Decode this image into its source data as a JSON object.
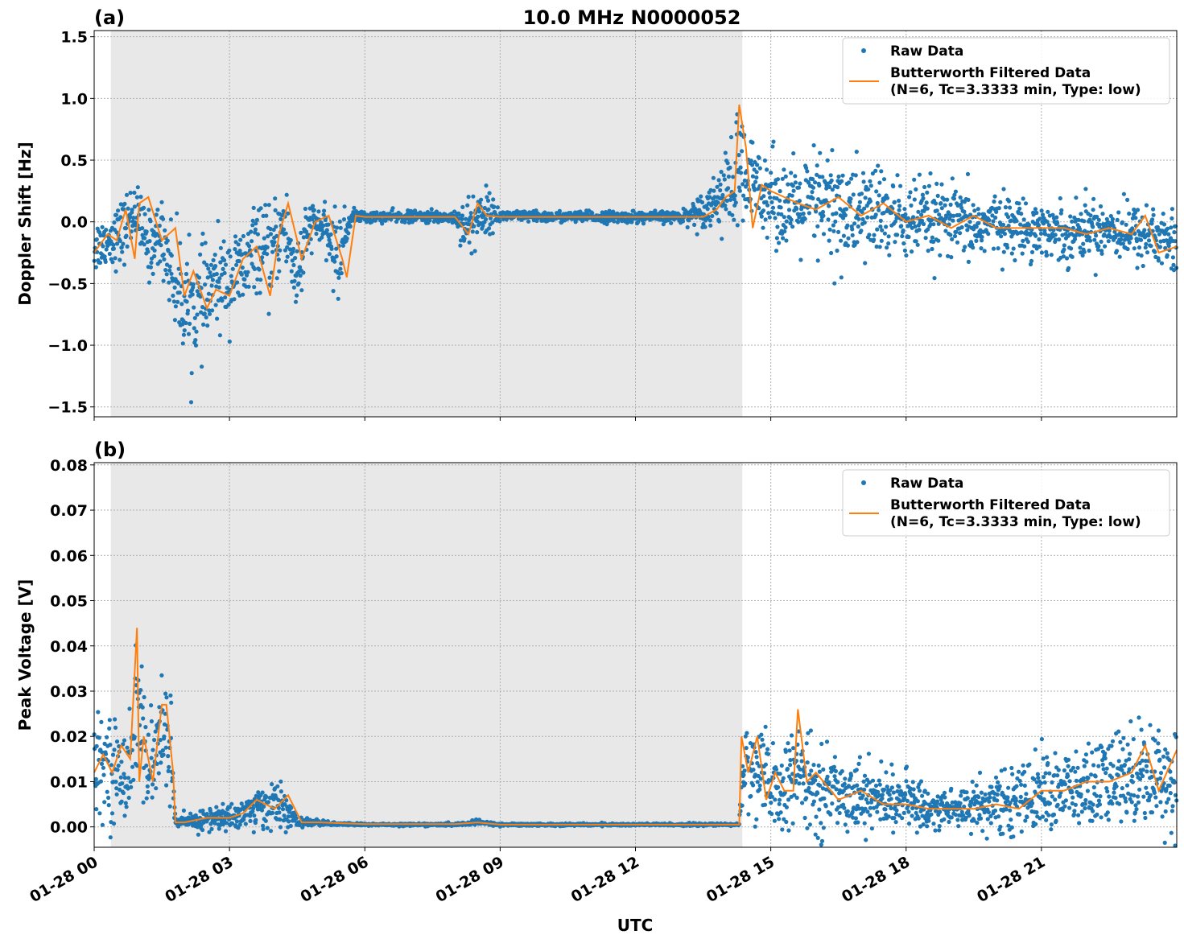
{
  "figure": {
    "title": "10.0 MHz N0000052",
    "x_axis_label": "UTC"
  },
  "chart_data": [
    {
      "panel": "(a)",
      "type": "line",
      "title": "10.0 MHz N0000052",
      "ylabel": "Doppler Shift [Hz]",
      "xlabel": "",
      "x_range_hours": [
        0,
        24
      ],
      "ylim": [
        -1.58,
        1.55
      ],
      "yticks": [
        -1.5,
        -1.0,
        -0.5,
        0.0,
        0.5,
        1.0,
        1.5
      ],
      "ytick_labels": [
        "−1.5",
        "−1.0",
        "−0.5",
        "0.0",
        "0.5",
        "1.0",
        "1.5"
      ],
      "grid": true,
      "legend_position": "top-right",
      "shaded_region_hours": [
        0.37,
        14.37
      ],
      "series": [
        {
          "name": "Raw Data",
          "style": "points",
          "color": "#1f77b4",
          "x_hours": [
            0,
            0.3,
            0.6,
            0.9,
            1.2,
            1.5,
            1.8,
            2.1,
            2.4,
            2.7,
            3.0,
            3.3,
            3.6,
            3.9,
            4.2,
            4.5,
            4.8,
            5.1,
            5.4,
            5.7,
            6.0,
            7.0,
            8.0,
            8.3,
            8.6,
            9.0,
            10.0,
            11.0,
            12.0,
            13.0,
            13.5,
            14.0,
            14.3,
            14.5,
            14.8,
            15.2,
            15.6,
            16.0,
            16.4,
            16.8,
            17.2,
            17.6,
            18.0,
            18.5,
            19.0,
            19.5,
            20.0,
            20.5,
            21.0,
            21.5,
            22.0,
            22.5,
            23.0,
            23.5,
            24.0
          ],
          "y_center": [
            -0.2,
            -0.15,
            -0.1,
            0.1,
            -0.2,
            -0.1,
            -0.5,
            -0.7,
            -0.65,
            -0.5,
            -0.45,
            -0.4,
            -0.2,
            -0.3,
            0.0,
            -0.45,
            0.0,
            -0.05,
            -0.3,
            0.05,
            0.04,
            0.04,
            0.04,
            -0.05,
            0.08,
            0.05,
            0.04,
            0.04,
            0.04,
            0.04,
            0.1,
            0.25,
            0.35,
            0.3,
            0.3,
            0.15,
            0.1,
            0.15,
            0.1,
            0.05,
            0.1,
            0.05,
            0.0,
            0.0,
            0.0,
            -0.05,
            0.0,
            -0.05,
            -0.05,
            -0.1,
            -0.05,
            -0.05,
            -0.1,
            -0.1,
            -0.2
          ],
          "y_spread": [
            0.25,
            0.2,
            0.3,
            0.25,
            0.3,
            0.3,
            0.45,
            0.5,
            0.45,
            0.4,
            0.4,
            0.4,
            0.35,
            0.4,
            0.35,
            0.45,
            0.2,
            0.15,
            0.4,
            0.06,
            0.05,
            0.05,
            0.06,
            0.3,
            0.25,
            0.05,
            0.05,
            0.05,
            0.05,
            0.05,
            0.15,
            0.3,
            0.7,
            0.4,
            0.35,
            0.4,
            0.35,
            0.5,
            0.55,
            0.45,
            0.45,
            0.4,
            0.35,
            0.35,
            0.3,
            0.3,
            0.25,
            0.25,
            0.25,
            0.25,
            0.25,
            0.25,
            0.25,
            0.3,
            0.3
          ]
        },
        {
          "name": "Butterworth Filtered Data\n(N=6, Tc=3.3333 min, Type: low)",
          "style": "line",
          "color": "#ff7f0e",
          "x_hours": [
            0,
            0.3,
            0.5,
            0.7,
            0.9,
            1.0,
            1.2,
            1.5,
            1.8,
            2.0,
            2.2,
            2.5,
            2.7,
            3.0,
            3.3,
            3.6,
            3.9,
            4.1,
            4.3,
            4.6,
            4.9,
            5.2,
            5.5,
            5.6,
            5.8,
            6.0,
            8.0,
            8.3,
            8.5,
            8.7,
            9.0,
            10.0,
            12.0,
            13.5,
            13.8,
            14.0,
            14.2,
            14.3,
            14.45,
            14.6,
            14.8,
            15.0,
            15.3,
            15.6,
            16.0,
            16.5,
            17.0,
            17.5,
            18.0,
            18.5,
            19.0,
            19.5,
            20.0,
            20.5,
            21.0,
            21.5,
            22.0,
            22.5,
            23.0,
            23.3,
            23.6,
            24.0
          ],
          "y_values": [
            -0.25,
            -0.1,
            -0.15,
            0.1,
            -0.3,
            0.15,
            0.2,
            -0.15,
            -0.05,
            -0.6,
            -0.4,
            -0.7,
            -0.55,
            -0.6,
            -0.3,
            -0.2,
            -0.6,
            -0.1,
            0.15,
            -0.3,
            0.0,
            0.05,
            -0.3,
            -0.45,
            0.05,
            0.04,
            0.04,
            -0.1,
            0.15,
            0.05,
            0.04,
            0.04,
            0.04,
            0.04,
            0.1,
            0.2,
            0.25,
            0.95,
            0.6,
            -0.05,
            0.3,
            0.25,
            0.2,
            0.15,
            0.1,
            0.2,
            0.05,
            0.15,
            0.0,
            0.05,
            -0.05,
            0.05,
            -0.05,
            -0.05,
            -0.05,
            -0.05,
            -0.1,
            -0.05,
            -0.1,
            0.05,
            -0.25,
            -0.2
          ]
        }
      ]
    },
    {
      "panel": "(b)",
      "type": "line",
      "ylabel": "Peak Voltage [V]",
      "xlabel": "UTC",
      "x_range_hours": [
        0,
        24
      ],
      "ylim": [
        -0.0045,
        0.0805
      ],
      "yticks": [
        0.0,
        0.01,
        0.02,
        0.03,
        0.04,
        0.05,
        0.06,
        0.07,
        0.08
      ],
      "ytick_labels": [
        "0.00",
        "0.01",
        "0.02",
        "0.03",
        "0.04",
        "0.05",
        "0.06",
        "0.07",
        "0.08"
      ],
      "grid": true,
      "legend_position": "top-right",
      "shaded_region_hours": [
        0.37,
        14.37
      ],
      "series": [
        {
          "name": "Raw Data",
          "style": "points",
          "color": "#1f77b4",
          "x_hours": [
            0,
            0.3,
            0.6,
            0.9,
            1.0,
            1.2,
            1.5,
            1.7,
            1.8,
            2.1,
            2.4,
            2.7,
            3.0,
            3.3,
            3.6,
            3.9,
            4.2,
            4.5,
            4.8,
            5.1,
            5.4,
            5.7,
            6.0,
            8.0,
            8.5,
            9.0,
            12.0,
            14.0,
            14.3,
            14.4,
            14.7,
            15.0,
            15.3,
            15.6,
            16.0,
            16.5,
            17.0,
            17.5,
            18.0,
            18.5,
            19.0,
            19.5,
            20.0,
            20.5,
            21.0,
            21.5,
            22.0,
            22.5,
            23.0,
            23.5,
            24.0
          ],
          "y_center": [
            0.012,
            0.015,
            0.01,
            0.02,
            0.03,
            0.01,
            0.02,
            0.02,
            0.001,
            0.001,
            0.0015,
            0.002,
            0.002,
            0.003,
            0.004,
            0.005,
            0.004,
            0.001,
            0.001,
            0.0008,
            0.0006,
            0.0006,
            0.0005,
            0.0005,
            0.001,
            0.0005,
            0.0005,
            0.0005,
            0.0005,
            0.015,
            0.012,
            0.008,
            0.008,
            0.012,
            0.008,
            0.008,
            0.007,
            0.006,
            0.006,
            0.004,
            0.004,
            0.005,
            0.005,
            0.006,
            0.008,
            0.008,
            0.008,
            0.01,
            0.012,
            0.012,
            0.01
          ],
          "y_spread": [
            0.01,
            0.012,
            0.012,
            0.015,
            0.02,
            0.012,
            0.015,
            0.012,
            0.001,
            0.002,
            0.003,
            0.003,
            0.003,
            0.004,
            0.005,
            0.006,
            0.005,
            0.001,
            0.001,
            0.0006,
            0.0003,
            0.0003,
            0.0003,
            0.0003,
            0.0006,
            0.0003,
            0.0003,
            0.0003,
            0.0003,
            0.01,
            0.012,
            0.01,
            0.01,
            0.012,
            0.01,
            0.009,
            0.008,
            0.007,
            0.006,
            0.005,
            0.005,
            0.006,
            0.007,
            0.008,
            0.009,
            0.01,
            0.01,
            0.012,
            0.012,
            0.012,
            0.012
          ]
        },
        {
          "name": "Butterworth Filtered Data\n(N=6, Tc=3.3333 min, Type: low)",
          "style": "line",
          "color": "#ff7f0e",
          "x_hours": [
            0,
            0.2,
            0.4,
            0.6,
            0.8,
            0.95,
            1.0,
            1.1,
            1.3,
            1.5,
            1.6,
            1.75,
            1.8,
            2.0,
            2.5,
            3.0,
            3.3,
            3.6,
            4.0,
            4.3,
            4.6,
            5.0,
            6.0,
            8.0,
            8.5,
            9.0,
            12.0,
            14.0,
            14.3,
            14.35,
            14.5,
            14.7,
            14.9,
            15.1,
            15.3,
            15.5,
            15.6,
            15.8,
            16.0,
            16.5,
            17.0,
            17.5,
            18.0,
            18.5,
            19.0,
            19.5,
            20.0,
            20.5,
            21.0,
            21.5,
            22.0,
            22.5,
            23.0,
            23.3,
            23.6,
            24.0
          ],
          "y_values": [
            0.012,
            0.016,
            0.012,
            0.018,
            0.015,
            0.044,
            0.01,
            0.02,
            0.01,
            0.027,
            0.027,
            0.012,
            0.001,
            0.001,
            0.002,
            0.002,
            0.003,
            0.006,
            0.004,
            0.007,
            0.001,
            0.001,
            0.0006,
            0.0006,
            0.001,
            0.0005,
            0.0005,
            0.0005,
            0.0005,
            0.02,
            0.012,
            0.02,
            0.006,
            0.012,
            0.008,
            0.008,
            0.026,
            0.01,
            0.012,
            0.006,
            0.008,
            0.005,
            0.005,
            0.004,
            0.004,
            0.004,
            0.005,
            0.004,
            0.008,
            0.008,
            0.01,
            0.01,
            0.012,
            0.018,
            0.008,
            0.017
          ]
        }
      ]
    }
  ],
  "x_tick_labels": [
    "01-28 00",
    "01-28 03",
    "01-28 06",
    "01-28 09",
    "01-28 12",
    "01-28 15",
    "01-28 18",
    "01-28 21"
  ],
  "x_tick_hours": [
    0,
    3,
    6,
    9,
    12,
    15,
    18,
    21
  ],
  "colors": {
    "raw": "#1f77b4",
    "filtered": "#ff7f0e",
    "shade": "#e8e8e8",
    "grid": "#b0b0b0"
  },
  "legend": {
    "raw_label": "Raw Data",
    "filtered_label_line1": "Butterworth Filtered Data",
    "filtered_label_line2": "(N=6, Tc=3.3333 min, Type: low)"
  }
}
